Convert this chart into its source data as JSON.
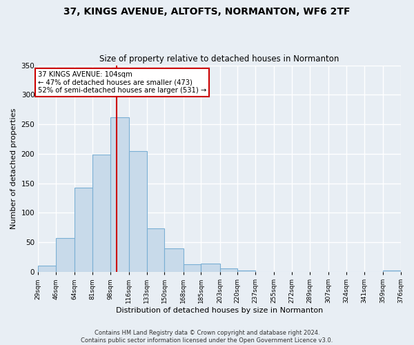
{
  "title": "37, KINGS AVENUE, ALTOFTS, NORMANTON, WF6 2TF",
  "subtitle": "Size of property relative to detached houses in Normanton",
  "xlabel": "Distribution of detached houses by size in Normanton",
  "ylabel": "Number of detached properties",
  "bar_color": "#c8daea",
  "bar_edge_color": "#7aafd4",
  "bin_edges": [
    29,
    46,
    64,
    81,
    98,
    116,
    133,
    150,
    168,
    185,
    203,
    220,
    237,
    255,
    272,
    289,
    307,
    324,
    341,
    359,
    376
  ],
  "bin_labels": [
    "29sqm",
    "46sqm",
    "64sqm",
    "81sqm",
    "98sqm",
    "116sqm",
    "133sqm",
    "150sqm",
    "168sqm",
    "185sqm",
    "203sqm",
    "220sqm",
    "237sqm",
    "255sqm",
    "272sqm",
    "289sqm",
    "307sqm",
    "324sqm",
    "341sqm",
    "359sqm",
    "376sqm"
  ],
  "counts": [
    10,
    57,
    143,
    199,
    262,
    204,
    74,
    40,
    13,
    14,
    6,
    2,
    0,
    0,
    0,
    0,
    0,
    0,
    0,
    2
  ],
  "vline_x": 104,
  "vline_color": "#cc0000",
  "annotation_text": "37 KINGS AVENUE: 104sqm\n← 47% of detached houses are smaller (473)\n52% of semi-detached houses are larger (531) →",
  "annotation_box_color": "#ffffff",
  "annotation_box_edge": "#cc0000",
  "ylim": [
    0,
    350
  ],
  "yticks": [
    0,
    50,
    100,
    150,
    200,
    250,
    300,
    350
  ],
  "footer1": "Contains HM Land Registry data © Crown copyright and database right 2024.",
  "footer2": "Contains public sector information licensed under the Open Government Licence v3.0.",
  "bg_color": "#e8eef4",
  "plot_bg_color": "#e8eef4",
  "grid_color": "#ffffff"
}
